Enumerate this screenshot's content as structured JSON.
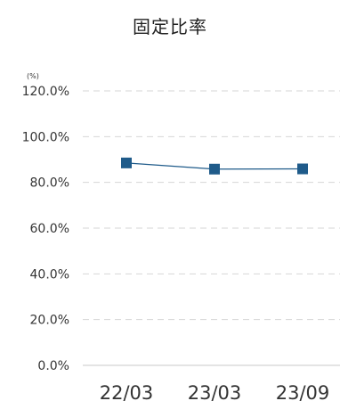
{
  "chart_data": {
    "type": "line",
    "title": "固定比率",
    "unit": "(%)",
    "categories": [
      "22/03",
      "23/03",
      "23/09"
    ],
    "series": [
      {
        "values": [
          88.5,
          85.8,
          85.9
        ],
        "color": "#1f5b8a"
      }
    ],
    "ylim": [
      0,
      120
    ],
    "yticks": [
      {
        "value": 0,
        "label": "0.0%"
      },
      {
        "value": 20,
        "label": "20.0%"
      },
      {
        "value": 40,
        "label": "40.0%"
      },
      {
        "value": 60,
        "label": "60.0%"
      },
      {
        "value": 80,
        "label": "80.0%"
      },
      {
        "value": 100,
        "label": "100.0%"
      },
      {
        "value": 120,
        "label": "120.0%"
      }
    ],
    "grid": true,
    "grid_style": "dashed",
    "legend": "none"
  }
}
